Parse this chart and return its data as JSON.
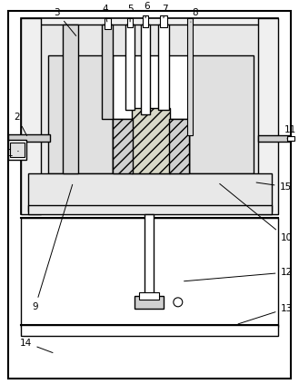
{
  "fig_width": 3.29,
  "fig_height": 4.23,
  "dpi": 100,
  "bg_color": "#ffffff",
  "line_color": "#000000",
  "speckle_color": "#888888",
  "hatch_color": "#666666"
}
